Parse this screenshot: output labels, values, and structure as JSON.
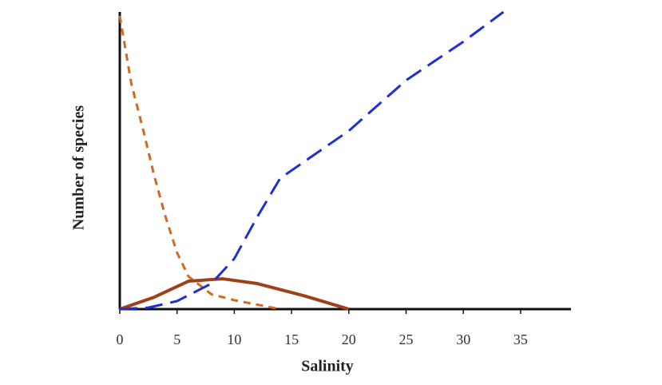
{
  "chart_data": {
    "type": "line",
    "x_label": "Salinity",
    "y_label": "Number of species",
    "xlim": [
      0,
      39.4
    ],
    "xticks": [
      0,
      5,
      10,
      15,
      20,
      25,
      30,
      35
    ],
    "ylim": [
      0,
      100
    ],
    "series": [
      {
        "color": "#d2691e",
        "style": "short-dash",
        "x": [
          0,
          1,
          2,
          3,
          4,
          5,
          6,
          8,
          10,
          14
        ],
        "values": [
          98.7,
          76,
          61,
          45,
          31,
          19,
          11,
          5,
          3,
          0
        ]
      },
      {
        "color": "#a0401a",
        "style": "solid",
        "x": [
          0,
          3,
          6,
          9,
          12,
          16,
          20
        ],
        "values": [
          0,
          4,
          9.4,
          10.2,
          8.6,
          4.6,
          0
        ]
      },
      {
        "color": "#1f2fd0",
        "style": "long-dash",
        "x": [
          0,
          2.5,
          5,
          8,
          10,
          12,
          14,
          15.5,
          20,
          25,
          30,
          33.5
        ],
        "values": [
          0,
          0.5,
          2.7,
          8.6,
          17,
          31,
          44,
          48,
          60,
          77,
          90,
          100
        ]
      }
    ]
  }
}
